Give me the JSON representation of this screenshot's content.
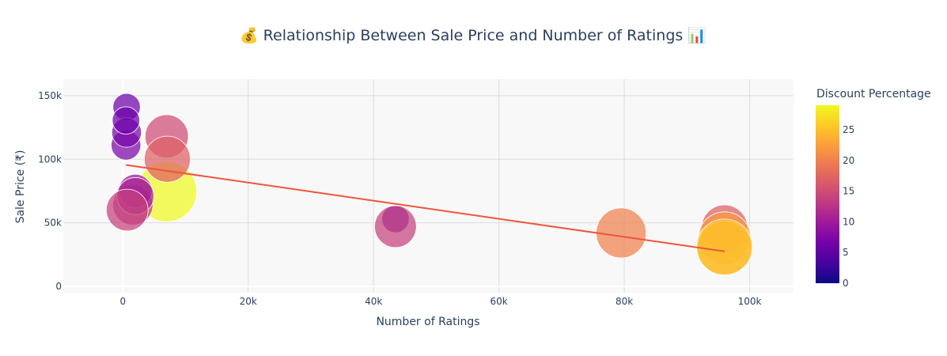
{
  "chart_data": {
    "type": "scatter",
    "title": "💰 Relationship Between Sale Price and Number of Ratings 📊",
    "xlabel": "Number of Ratings",
    "ylabel": "Sale Price (₹)",
    "xlim": [
      -9500,
      107000
    ],
    "ylim": [
      -5000,
      163000
    ],
    "x_ticks": [
      {
        "value": 0,
        "label": "0"
      },
      {
        "value": 20000,
        "label": "20k"
      },
      {
        "value": 40000,
        "label": "40k"
      },
      {
        "value": 60000,
        "label": "60k"
      },
      {
        "value": 80000,
        "label": "80k"
      },
      {
        "value": 100000,
        "label": "100k"
      }
    ],
    "y_ticks": [
      {
        "value": 0,
        "label": "0"
      },
      {
        "value": 50000,
        "label": "50k"
      },
      {
        "value": 100000,
        "label": "100k"
      },
      {
        "value": 150000,
        "label": "150k"
      }
    ],
    "grid": true,
    "colorbar": {
      "title": "Discount Percentage",
      "min": 0,
      "max": 29,
      "colors": [
        "#0d0887",
        "#46039f",
        "#7201a8",
        "#9c179e",
        "#bd3786",
        "#d8576b",
        "#ed7953",
        "#fb9f3a",
        "#fdca26",
        "#f0f921"
      ],
      "ticks": [
        {
          "value": 0,
          "label": "0"
        },
        {
          "value": 5,
          "label": "5"
        },
        {
          "value": 10,
          "label": "10"
        },
        {
          "value": 15,
          "label": "15"
        },
        {
          "value": 20,
          "label": "20"
        },
        {
          "value": 25,
          "label": "25"
        }
      ]
    },
    "bubble_size_encodes": "Discount Percentage",
    "points": [
      {
        "x": 7000,
        "y": 74500,
        "discount": 29
      },
      {
        "x": 600,
        "y": 141000,
        "discount": 6
      },
      {
        "x": 500,
        "y": 111000,
        "discount": 7
      },
      {
        "x": 600,
        "y": 121000,
        "discount": 7
      },
      {
        "x": 500,
        "y": 130500,
        "discount": 6
      },
      {
        "x": 7000,
        "y": 118000,
        "discount": 15
      },
      {
        "x": 7100,
        "y": 100000,
        "discount": 17
      },
      {
        "x": 1600,
        "y": 64000,
        "discount": 13
      },
      {
        "x": 2000,
        "y": 75000,
        "discount": 9
      },
      {
        "x": 2000,
        "y": 71000,
        "discount": 11
      },
      {
        "x": 700,
        "y": 60000,
        "discount": 14
      },
      {
        "x": 43500,
        "y": 53000,
        "discount": 6
      },
      {
        "x": 43500,
        "y": 47000,
        "discount": 14
      },
      {
        "x": 79500,
        "y": 42000,
        "discount": 20
      },
      {
        "x": 96000,
        "y": 46000,
        "discount": 17
      },
      {
        "x": 96000,
        "y": 38000,
        "discount": 22
      },
      {
        "x": 96000,
        "y": 30000,
        "discount": 24
      },
      {
        "x": 96000,
        "y": 31000,
        "discount": 25
      }
    ],
    "trendline": {
      "color": "#ef553b",
      "points": [
        {
          "x": 500,
          "y": 95500
        },
        {
          "x": 96000,
          "y": 27500
        }
      ]
    }
  }
}
